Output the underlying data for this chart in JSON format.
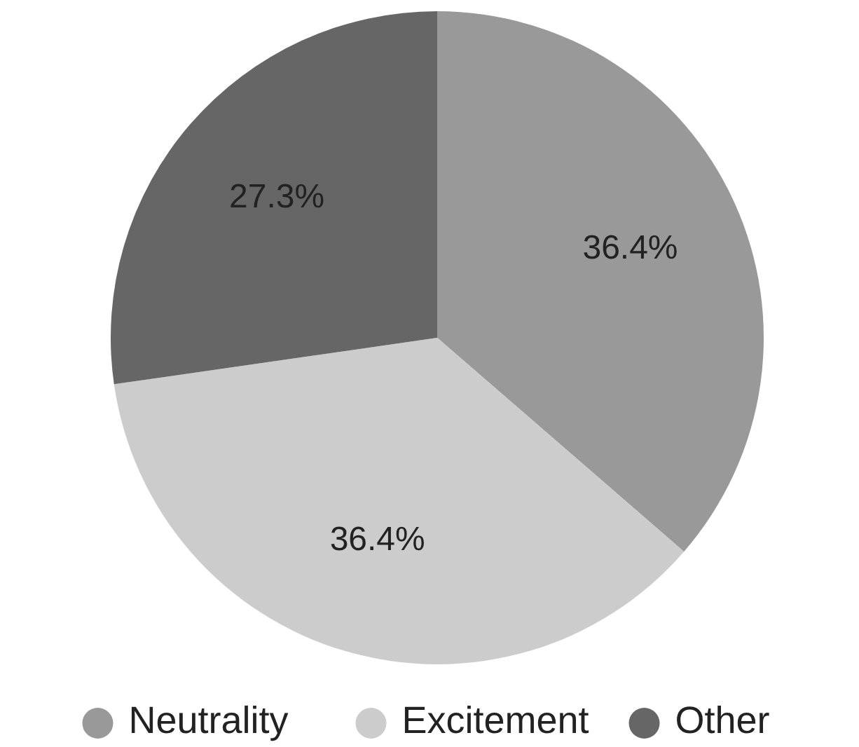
{
  "chart_data": {
    "type": "pie",
    "categories": [
      "Neutrality",
      "Excitement",
      "Other"
    ],
    "values": [
      36.4,
      36.4,
      27.3
    ],
    "colors": [
      "#999999",
      "#cccccc",
      "#666666"
    ],
    "value_labels": [
      "36.4%",
      "36.4%",
      "27.3%"
    ],
    "legend": "bottom"
  }
}
